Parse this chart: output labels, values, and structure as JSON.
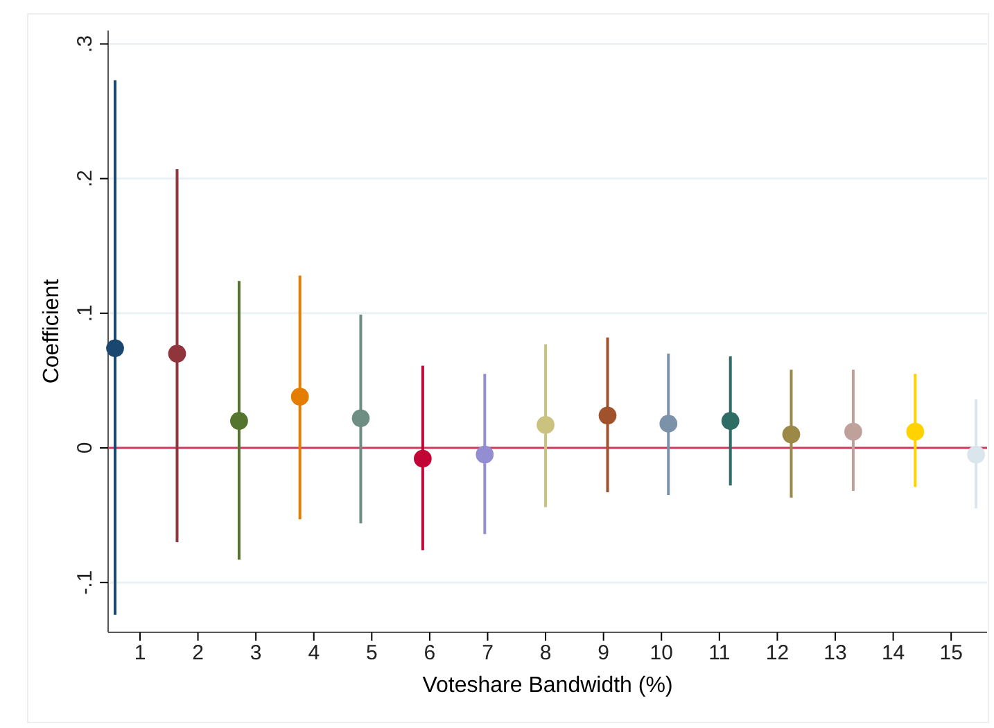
{
  "chart_data": {
    "type": "scatter",
    "xlabel": "Voteshare Bandwidth (%)",
    "ylabel": "Coefficient",
    "xlim": [
      0.45,
      15.62
    ],
    "xticks": [
      1,
      2,
      3,
      4,
      5,
      6,
      7,
      8,
      9,
      10,
      11,
      12,
      13,
      14,
      15
    ],
    "ylim": [
      -0.137,
      0.31
    ],
    "yticks": [
      {
        "value": -0.1,
        "label": "-.1"
      },
      0,
      {
        "value": 0.1,
        "label": ".1"
      },
      {
        "value": 0.2,
        "label": ".2"
      },
      {
        "value": 0.3,
        "label": ".3"
      }
    ],
    "grid": "y",
    "marker": "circle",
    "ref_lines": [
      {
        "axis": "y",
        "value": 0,
        "color": "#d03a5e"
      }
    ],
    "series": [
      {
        "x": [
          0.57,
          1.64,
          2.71,
          3.76,
          4.81,
          5.88,
          6.95,
          8.0,
          9.07,
          10.12,
          11.19,
          12.24,
          13.31,
          14.38,
          15.43
        ],
        "values": [
          0.074,
          0.07,
          0.02,
          0.038,
          0.022,
          -0.008,
          -0.005,
          0.017,
          0.024,
          0.018,
          0.02,
          0.01,
          0.012,
          0.012,
          -0.005
        ],
        "errors": [
          [
            -0.124,
            0.273
          ],
          [
            -0.07,
            0.207
          ],
          [
            -0.083,
            0.124
          ],
          [
            -0.053,
            0.128
          ],
          [
            -0.056,
            0.099
          ],
          [
            -0.076,
            0.061
          ],
          [
            -0.064,
            0.055
          ],
          [
            -0.044,
            0.077
          ],
          [
            -0.033,
            0.082
          ],
          [
            -0.035,
            0.07
          ],
          [
            -0.028,
            0.068
          ],
          [
            -0.037,
            0.058
          ],
          [
            -0.032,
            0.058
          ],
          [
            -0.029,
            0.055
          ],
          [
            -0.045,
            0.036
          ]
        ],
        "colors": [
          "#1a476f",
          "#90353b",
          "#55752f",
          "#e37e00",
          "#6e8e84",
          "#c10534",
          "#938dd2",
          "#cac27e",
          "#a0522d",
          "#7b92a8",
          "#2d6d66",
          "#9c8847",
          "#bfa19c",
          "#ffd200",
          "#d9e6eb"
        ]
      }
    ]
  }
}
